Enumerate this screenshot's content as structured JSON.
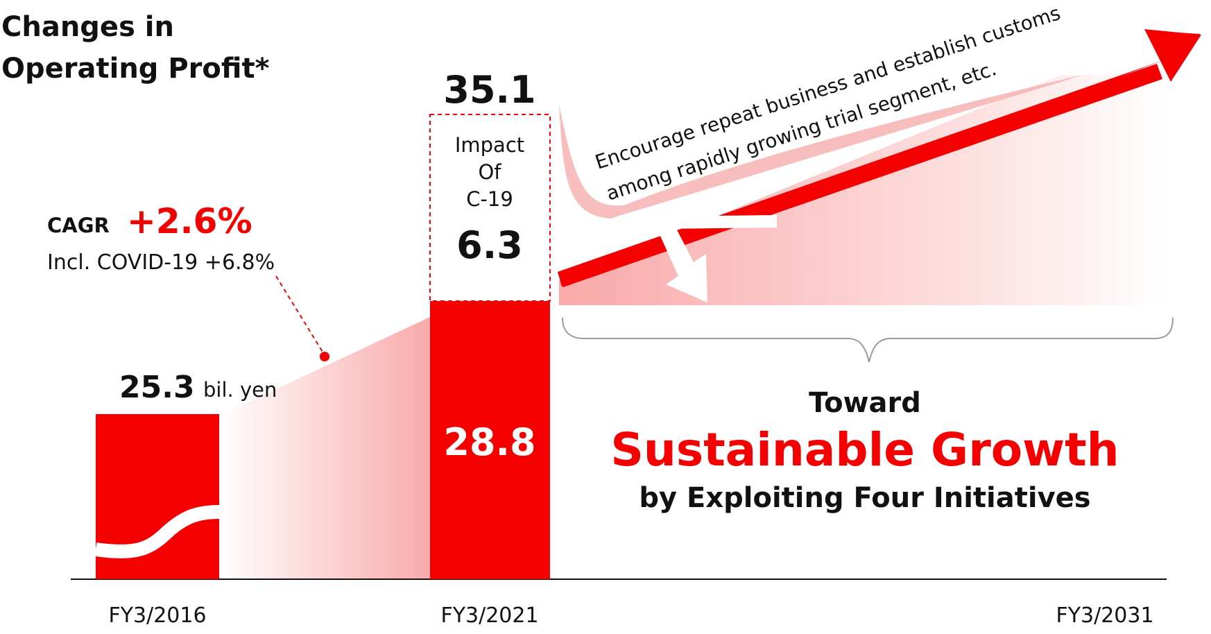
{
  "colors": {
    "accent": "#f40000",
    "text": "#111111",
    "white": "#ffffff"
  },
  "chart_data": {
    "type": "bar",
    "title_lines": [
      "Changes in",
      "Operating Profit*"
    ],
    "categories": [
      "FY3/2016",
      "FY3/2021",
      "FY3/2031"
    ],
    "unit": "bil. yen",
    "values": [
      25.3,
      28.8,
      null
    ],
    "impact": {
      "label_lines": [
        "Impact",
        "Of",
        "C-19"
      ],
      "value": "6.3"
    },
    "total_2021": "35.1",
    "label_2016": "25.3",
    "label_2021": "28.8",
    "cagr": {
      "label": "CAGR",
      "value": "+2.6%",
      "incl": "Incl. COVID-19 +6.8%"
    },
    "arrow_text": [
      "Encourage repeat business and establish customs",
      "among rapidly growing trial segment, etc."
    ],
    "goal": {
      "line1": "Toward",
      "line2": "Sustainable Growth",
      "line3": "by Exploiting Four Initiatives"
    }
  }
}
